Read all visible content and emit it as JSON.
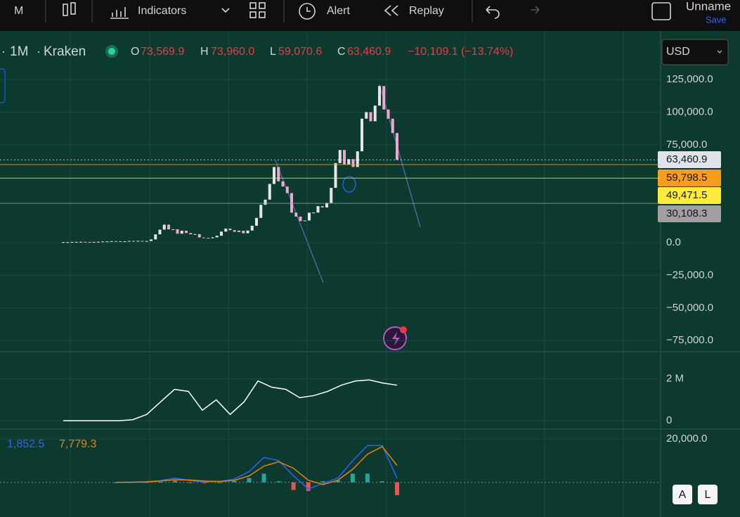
{
  "toolbar": {
    "interval": "M",
    "indicators": "Indicators",
    "alert": "Alert",
    "replay": "Replay",
    "layout_name": "Unname",
    "save": "Save"
  },
  "legend": {
    "interval": "1M",
    "exchange": "Kraken",
    "o_label": "O",
    "open": "73,569.9",
    "h_label": "H",
    "high": "73,960.0",
    "l_label": "L",
    "low": "59,070.6",
    "c_label": "C",
    "close": "63,460.9",
    "change": "−10,109.1 (−13.74%)"
  },
  "currency": "USD",
  "buttons": [
    "A",
    "L"
  ],
  "chart_data": [
    {
      "type": "candlestick",
      "up_color": "#e6e6e6",
      "down_color": "#f2a6cf",
      "close": [
        430,
        440,
        600,
        650,
        700,
        620,
        570,
        610,
        750,
        960,
        1000,
        1200,
        1100,
        950,
        1050,
        1350,
        1100,
        1400,
        1000,
        1300,
        2500,
        6400,
        10000,
        13800,
        10200,
        10300,
        6900,
        9200,
        7400,
        6400,
        6600,
        4000,
        3700,
        3450,
        4100,
        5300,
        8500,
        10800,
        9600,
        8300,
        9200,
        7200,
        9300,
        13000,
        19000,
        29000,
        33000,
        45000,
        58000,
        47000,
        43000,
        38000,
        23000,
        20000,
        16500,
        17000,
        23000,
        23100,
        28000,
        27000,
        30500,
        42000,
        61000,
        71000,
        60000,
        64000,
        58000,
        70000,
        95000,
        100000,
        93000,
        105000,
        120000,
        102000,
        95000,
        84000,
        63460.9
      ],
      "ylim": [
        -83500,
        162200
      ],
      "yticks": [
        {
          "value": 125000,
          "label": "125,000.0"
        },
        {
          "value": 100000,
          "label": "100,000.0"
        },
        {
          "value": 75000,
          "label": "75,000.0"
        },
        {
          "value": 0,
          "label": "0.0"
        },
        {
          "value": -25000,
          "label": "−25,000.0"
        },
        {
          "value": -50000,
          "label": "−50,000.0"
        },
        {
          "value": -75000,
          "label": "−75,000.0"
        }
      ],
      "price_lines": [
        {
          "value": 63460.9,
          "label": "63,460.9",
          "color": "#e0e3eb"
        },
        {
          "value": 59798.5,
          "label": "59,798.5",
          "color": "#f89c1c"
        },
        {
          "value": 49471.5,
          "label": "49,471.5",
          "color": "#ffeb3b"
        },
        {
          "value": 30108.3,
          "label": "30,108.3",
          "color": "#a0a0a0"
        }
      ]
    },
    {
      "type": "line",
      "color": "#ffffff",
      "values": [
        0,
        0,
        0,
        0,
        0,
        50000,
        300000,
        900000,
        1500000,
        1400000,
        500000,
        1000000,
        300000,
        900000,
        1900000,
        1600000,
        1500000,
        1100000,
        1200000,
        1400000,
        1700000,
        1900000,
        1950000,
        1800000,
        1700000
      ],
      "ylim": [
        -400000,
        3300000
      ],
      "yticks": [
        {
          "value": 2000000,
          "label": "2 M"
        },
        0
      ]
    },
    {
      "type": "macd",
      "legend": [
        "1,852.5",
        "7,779.3"
      ],
      "series": [
        {
          "color": "#2962ff",
          "values": [
            0,
            100,
            300,
            800,
            2000,
            800,
            200,
            400,
            1500,
            5000,
            11500,
            10000,
            3000,
            -3000,
            -500,
            2000,
            10000,
            17000,
            17000,
            1852.5
          ]
        },
        {
          "color": "#f57c00",
          "values": [
            0,
            50,
            200,
            600,
            1200,
            1100,
            600,
            400,
            900,
            3000,
            7500,
            9500,
            6500,
            1000,
            -1000,
            1000,
            6000,
            13000,
            16500,
            7779.3
          ]
        }
      ],
      "histogram": [
        0,
        50,
        100,
        200,
        800,
        -300,
        -400,
        0,
        600,
        2000,
        4000,
        500,
        -3500,
        -4000,
        500,
        1000,
        4000,
        4000,
        500,
        -5900
      ],
      "ylim": [
        -16000,
        24600
      ],
      "yticks": [
        {
          "value": 20000,
          "label": "20,000.0"
        }
      ]
    }
  ]
}
